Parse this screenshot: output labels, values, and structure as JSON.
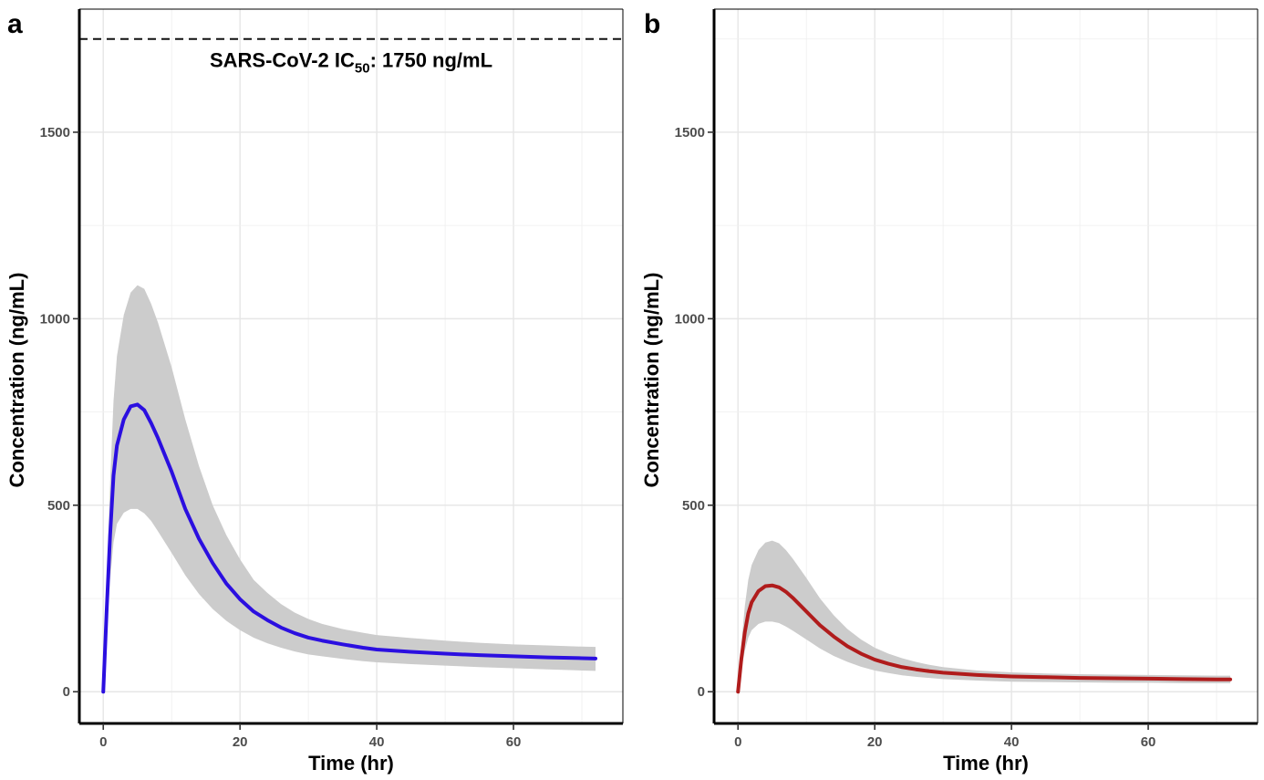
{
  "chart_data": [
    {
      "type": "line",
      "panel_label": "a",
      "xlabel": "Time (hr)",
      "ylabel": "Concentration (ng/mL)",
      "xlim": [
        -3.5,
        76
      ],
      "ylim": [
        -85,
        1830
      ],
      "x_ticks": [
        0,
        20,
        40,
        60
      ],
      "y_ticks": [
        0,
        500,
        1000,
        1500
      ],
      "grid": true,
      "line_color": "#2b0fe0",
      "band_color": "#cccccc",
      "series": [
        {
          "x": [
            0,
            0.5,
            1,
            1.5,
            2,
            3,
            4,
            5,
            6,
            7,
            8,
            10,
            12,
            14,
            16,
            18,
            20,
            22,
            24,
            26,
            28,
            30,
            32,
            35,
            38,
            40,
            45,
            50,
            55,
            60,
            65,
            70,
            72
          ],
          "values": [
            0,
            220,
            420,
            580,
            660,
            730,
            765,
            770,
            755,
            720,
            680,
            590,
            490,
            410,
            345,
            290,
            248,
            215,
            192,
            172,
            157,
            145,
            137,
            127,
            118,
            113,
            107,
            102,
            98,
            95,
            92,
            90,
            89
          ],
          "lower": [
            0,
            160,
            300,
            400,
            450,
            480,
            490,
            490,
            478,
            458,
            430,
            372,
            312,
            262,
            222,
            190,
            165,
            145,
            130,
            118,
            108,
            100,
            95,
            88,
            82,
            79,
            74,
            70,
            66,
            63,
            60,
            57,
            56
          ],
          "upper": [
            0,
            290,
            560,
            780,
            900,
            1010,
            1070,
            1090,
            1080,
            1040,
            990,
            870,
            730,
            605,
            500,
            420,
            355,
            300,
            265,
            235,
            212,
            195,
            182,
            168,
            158,
            152,
            144,
            137,
            131,
            127,
            124,
            121,
            120
          ]
        }
      ],
      "reference_line": {
        "y": 1750,
        "label": "SARS-CoV-2 IC",
        "label_sub": "50",
        "label_tail": ": 1750 ng/mL"
      }
    },
    {
      "type": "line",
      "panel_label": "b",
      "xlabel": "Time (hr)",
      "ylabel": "Concentration (ng/mL)",
      "xlim": [
        -3.5,
        76
      ],
      "ylim": [
        -85,
        1830
      ],
      "x_ticks": [
        0,
        20,
        40,
        60
      ],
      "y_ticks": [
        0,
        500,
        1000,
        1500
      ],
      "grid": true,
      "line_color": "#b01c1c",
      "band_color": "#cccccc",
      "series": [
        {
          "x": [
            0,
            0.5,
            1,
            1.5,
            2,
            3,
            4,
            5,
            6,
            7,
            8,
            10,
            12,
            14,
            16,
            18,
            20,
            22,
            24,
            26,
            28,
            30,
            35,
            40,
            45,
            50,
            55,
            60,
            65,
            70,
            72
          ],
          "values": [
            0,
            90,
            160,
            210,
            240,
            270,
            283,
            285,
            280,
            268,
            252,
            215,
            178,
            148,
            122,
            102,
            86,
            75,
            66,
            60,
            55,
            51,
            45,
            41,
            39,
            37,
            36,
            35,
            34,
            33,
            33
          ],
          "lower": [
            0,
            60,
            110,
            145,
            165,
            182,
            188,
            188,
            184,
            175,
            164,
            140,
            116,
            96,
            80,
            67,
            57,
            50,
            44,
            40,
            37,
            34,
            30,
            27,
            26,
            25,
            24,
            24,
            23,
            23,
            23
          ],
          "upper": [
            0,
            130,
            230,
            300,
            340,
            380,
            400,
            405,
            398,
            380,
            357,
            305,
            250,
            205,
            168,
            140,
            118,
            102,
            90,
            80,
            72,
            66,
            57,
            52,
            49,
            47,
            46,
            45,
            44,
            43,
            43
          ]
        }
      ]
    }
  ]
}
